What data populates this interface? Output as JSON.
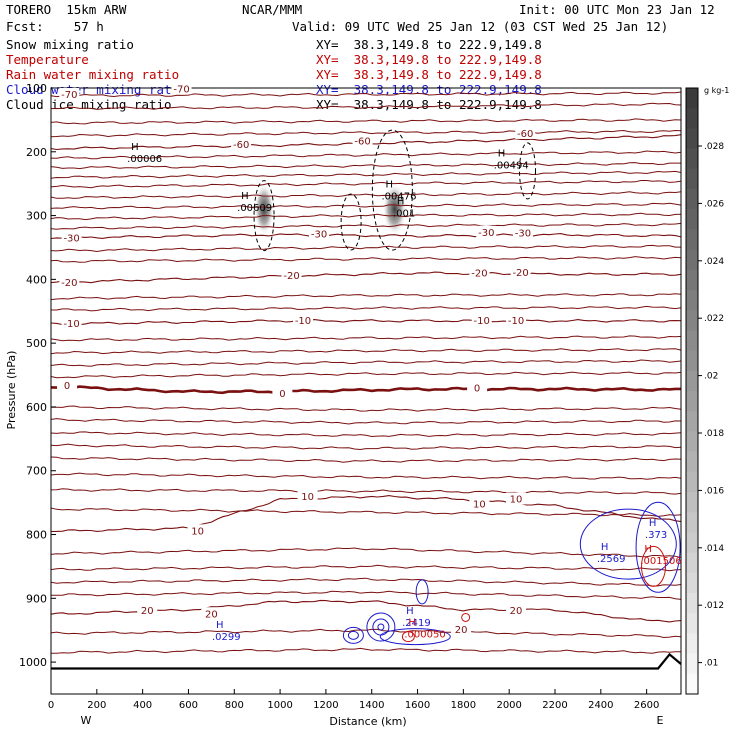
{
  "header": {
    "model": "TORERO  15km ARW",
    "forecast": "Fcst:    57 h",
    "center": "NCAR/MMM",
    "init": "Init: 00 UTC Mon 23 Jan 12",
    "valid": "Valid: 09 UTC Wed 25 Jan 12 (03 CST Wed 25 Jan 12)"
  },
  "fields": [
    {
      "name": "Snow mixing ratio",
      "xy": "XY=  38.3,149.8 to 222.9,149.8",
      "color": "#000000"
    },
    {
      "name": "Temperature",
      "xy": "XY=  38.3,149.8 to 222.9,149.8",
      "color": "#c00000"
    },
    {
      "name": "Rain water mixing ratio",
      "xy": "XY=  38.3,149.8 to 222.9,149.8",
      "color": "#c00000"
    },
    {
      "name": "Cloud water mixing ratio",
      "xy": "XY=  38.3,149.8 to 222.9,149.8",
      "color": "#1a1acc"
    },
    {
      "name": "Cloud ice mixing ratio",
      "xy": "XY=  38.3,149.8 to 222.9,149.8",
      "color": "#000000"
    }
  ],
  "chart_data": {
    "type": "line",
    "xlabel": "Distance (km)",
    "ylabel": "Pressure (hPa)",
    "xlim": [
      0,
      2750
    ],
    "ylim": [
      1050,
      100
    ],
    "x_ticks": [
      "0",
      "200",
      "400",
      "600",
      "800",
      "1000",
      "1200",
      "1400",
      "1600",
      "1800",
      "2000",
      "2200",
      "2400",
      "2600"
    ],
    "y_ticks": [
      "100",
      "200",
      "300",
      "400",
      "500",
      "600",
      "700",
      "800",
      "900",
      "1000"
    ],
    "x_end_labels": {
      "left": "W",
      "right": "E"
    },
    "temperature_isotherms": [
      {
        "value": -60,
        "label": "-60",
        "pressure_at_x": [
          [
            0,
            195
          ],
          [
            1000,
            190
          ],
          [
            1600,
            185
          ],
          [
            2200,
            180
          ],
          [
            2750,
            175
          ]
        ]
      },
      {
        "value": -30,
        "label": "-30",
        "pressure_at_x": [
          [
            0,
            335
          ],
          [
            1000,
            330
          ],
          [
            1600,
            332
          ],
          [
            2200,
            330
          ],
          [
            2750,
            332
          ]
        ]
      },
      {
        "value": -20,
        "label": "-20",
        "pressure_at_x": [
          [
            0,
            405
          ],
          [
            1000,
            395
          ],
          [
            1600,
            390
          ],
          [
            2200,
            392
          ],
          [
            2750,
            392
          ]
        ]
      },
      {
        "value": -10,
        "label": "-10",
        "pressure_at_x": [
          [
            0,
            470
          ],
          [
            1000,
            465
          ],
          [
            1600,
            465
          ],
          [
            2200,
            465
          ],
          [
            2750,
            465
          ]
        ]
      },
      {
        "value": 0,
        "label": "0",
        "pressure_at_x": [
          [
            0,
            568
          ],
          [
            600,
            576
          ],
          [
            1000,
            576
          ],
          [
            1600,
            572
          ],
          [
            2200,
            572
          ],
          [
            2750,
            573
          ]
        ]
      },
      {
        "value": 10,
        "label": "10",
        "pressure_at_x": [
          [
            0,
            795
          ],
          [
            600,
            790
          ],
          [
            1000,
            745
          ],
          [
            1200,
            743
          ],
          [
            1400,
            740
          ],
          [
            1800,
            745
          ],
          [
            2200,
            755
          ],
          [
            2600,
            775
          ],
          [
            2750,
            778
          ]
        ]
      },
      {
        "value": 20,
        "label": "20",
        "pressure_at_x": [
          [
            0,
            925
          ],
          [
            600,
            918
          ],
          [
            1000,
            905
          ],
          [
            1400,
            905
          ],
          [
            1800,
            918
          ],
          [
            2200,
            918
          ],
          [
            2600,
            935
          ],
          [
            2750,
            935
          ]
        ]
      }
    ],
    "isotherm_labels": [
      {
        "text": "-70",
        "x": 570,
        "p": 102
      },
      {
        "text": "-70",
        "x": 80,
        "p": 111
      },
      {
        "text": "-60",
        "x": 830,
        "p": 189
      },
      {
        "text": "-60",
        "x": 1360,
        "p": 184
      },
      {
        "text": "-60",
        "x": 2070,
        "p": 172
      },
      {
        "text": "-30",
        "x": 90,
        "p": 336
      },
      {
        "text": "-30",
        "x": 1170,
        "p": 330
      },
      {
        "text": "-30",
        "x": 1900,
        "p": 327
      },
      {
        "text": "-30",
        "x": 2060,
        "p": 328
      },
      {
        "text": "-20",
        "x": 80,
        "p": 406
      },
      {
        "text": "-20",
        "x": 1050,
        "p": 395
      },
      {
        "text": "-20",
        "x": 1870,
        "p": 391
      },
      {
        "text": "-20",
        "x": 2050,
        "p": 390
      },
      {
        "text": "-10",
        "x": 90,
        "p": 470
      },
      {
        "text": "-10",
        "x": 1100,
        "p": 465
      },
      {
        "text": "-10",
        "x": 1880,
        "p": 465
      },
      {
        "text": "-10",
        "x": 2030,
        "p": 465
      },
      {
        "text": "0",
        "x": 70,
        "p": 567
      },
      {
        "text": "0",
        "x": 1010,
        "p": 580
      },
      {
        "text": "0",
        "x": 1860,
        "p": 571
      },
      {
        "text": "10",
        "x": 640,
        "p": 795
      },
      {
        "text": "10",
        "x": 1120,
        "p": 741
      },
      {
        "text": "10",
        "x": 1870,
        "p": 753
      },
      {
        "text": "10",
        "x": 2030,
        "p": 745
      },
      {
        "text": "20",
        "x": 420,
        "p": 920
      },
      {
        "text": "20",
        "x": 700,
        "p": 925
      },
      {
        "text": "20",
        "x": 1790,
        "p": 950
      },
      {
        "text": "20",
        "x": 2030,
        "p": 920
      }
    ],
    "snow_max_labels": [
      {
        "text": ".00006",
        "x": 350,
        "p": 213
      },
      {
        "text": ".00609",
        "x": 830,
        "p": 290
      },
      {
        "text": ".00476",
        "x": 1460,
        "p": 272
      },
      {
        "text": ".001",
        "x": 1510,
        "p": 298
      },
      {
        "text": ".00494",
        "x": 1950,
        "p": 223
      }
    ],
    "cloud_water_max_labels": [
      {
        "text": ".0299",
        "x": 720,
        "p": 962
      },
      {
        "text": ".2419",
        "x": 1550,
        "p": 940
      },
      {
        "text": ".2569",
        "x": 2400,
        "p": 840
      },
      {
        "text": ".373",
        "x": 2610,
        "p": 802
      }
    ],
    "rain_max_labels": [
      {
        "text": ".000050",
        "x": 1560,
        "p": 958
      },
      {
        "text": ".001506",
        "x": 2590,
        "p": 843
      }
    ],
    "colorbar": {
      "unit": "g kg-1",
      "labels": [
        ".028",
        ".026",
        ".024",
        ".022",
        ".02",
        ".018",
        ".016",
        ".014",
        ".012",
        ".01"
      ]
    },
    "grid": false
  }
}
